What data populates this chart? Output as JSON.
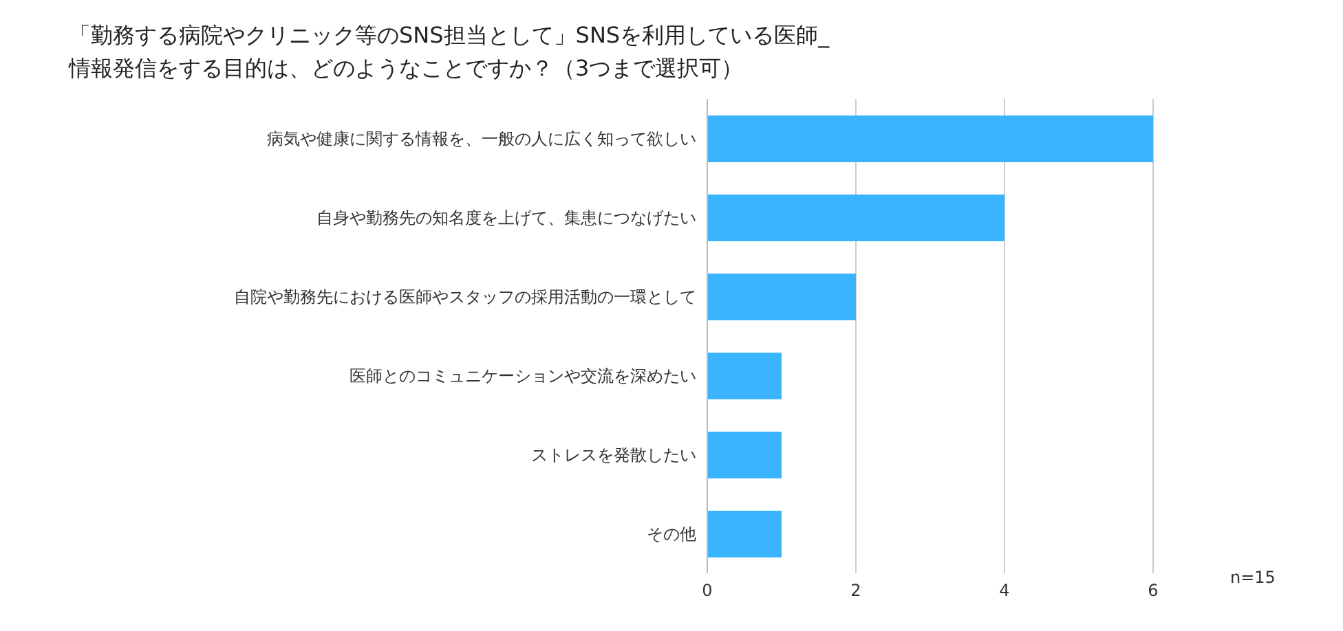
{
  "chart_data": {
    "type": "bar",
    "orientation": "horizontal",
    "title": "「勤務する病院やクリニック等のSNS担当として」SNSを利用している医師_\n情報発信をする目的は、どのようなことですか？（3つまで選択可）",
    "categories": [
      "病気や健康に関する情報を、一般の人に広く知って欲しい",
      "自身や勤務先の知名度を上げて、集患につなげたい",
      "自院や勤務先における医師やスタッフの採用活動の一環として",
      "医師とのコミュニケーションや交流を深めたい",
      "ストレスを発散したい",
      "その他"
    ],
    "values": [
      6,
      4,
      2,
      1,
      1,
      1
    ],
    "color": "#3ab4fc",
    "xlim": [
      0,
      6
    ],
    "xticks": [
      0,
      2,
      4,
      6
    ],
    "grid": "x",
    "annotations": [
      "n=15"
    ]
  }
}
